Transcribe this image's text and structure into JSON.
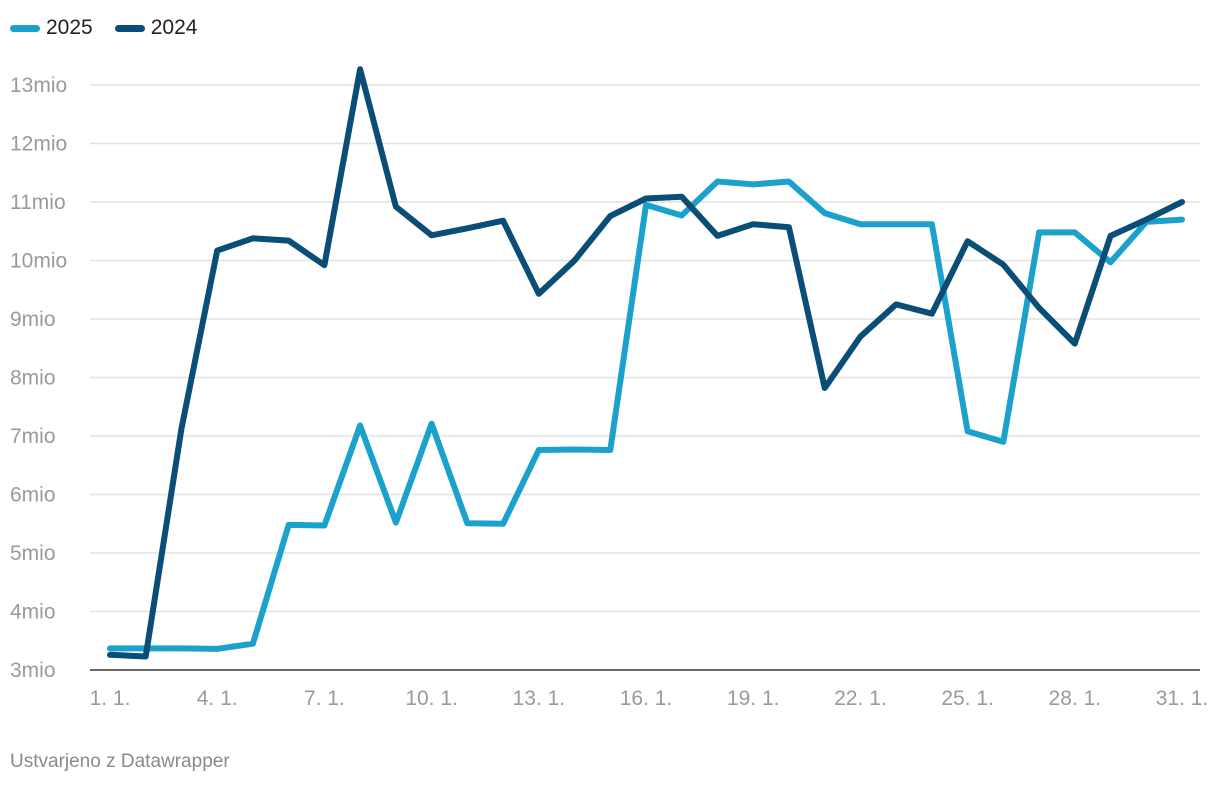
{
  "chart_data": {
    "type": "line",
    "title": "",
    "xlabel": "",
    "ylabel": "",
    "ylim": [
      3,
      13
    ],
    "x": [
      1,
      2,
      3,
      4,
      5,
      6,
      7,
      8,
      9,
      10,
      11,
      12,
      13,
      14,
      15,
      16,
      17,
      18,
      19,
      20,
      21,
      22,
      23,
      24,
      25,
      26,
      27,
      28,
      29,
      30,
      31
    ],
    "x_tick_labels": [
      "1. 1.",
      "4. 1.",
      "7. 1.",
      "10. 1.",
      "13. 1.",
      "16. 1.",
      "19. 1.",
      "22. 1.",
      "25. 1.",
      "28. 1.",
      "31. 1."
    ],
    "x_tick_positions": [
      1,
      4,
      7,
      10,
      13,
      16,
      19,
      22,
      25,
      28,
      31
    ],
    "y_ticks": [
      3,
      4,
      5,
      6,
      7,
      8,
      9,
      10,
      11,
      12,
      13
    ],
    "y_tick_labels": [
      "3mio",
      "4mio",
      "5mio",
      "6mio",
      "7mio",
      "8mio",
      "9mio",
      "10mio",
      "11mio",
      "12mio",
      "13mio"
    ],
    "series": [
      {
        "name": "2025",
        "color": "#1aa1cc",
        "values": [
          3.37,
          3.37,
          3.37,
          3.36,
          3.45,
          5.48,
          5.47,
          7.18,
          5.52,
          7.21,
          5.51,
          5.5,
          6.76,
          6.77,
          6.76,
          10.95,
          10.77,
          11.35,
          11.3,
          11.35,
          10.81,
          10.62,
          10.62,
          10.62,
          7.08,
          6.9,
          10.48,
          10.48,
          9.97,
          10.66,
          10.7
        ]
      },
      {
        "name": "2024",
        "color": "#0a4d76",
        "values": [
          3.26,
          3.23,
          7.13,
          10.17,
          10.38,
          10.34,
          9.92,
          13.27,
          10.92,
          10.43,
          10.55,
          10.68,
          9.43,
          10.0,
          10.76,
          11.06,
          11.09,
          10.42,
          10.62,
          10.57,
          7.82,
          8.7,
          9.25,
          9.09,
          10.33,
          9.93,
          9.19,
          8.58,
          10.42,
          10.7,
          11.0
        ]
      }
    ],
    "legend_position": "top-left"
  },
  "footer": {
    "credit": "Ustvarjeno z Datawrapper"
  }
}
